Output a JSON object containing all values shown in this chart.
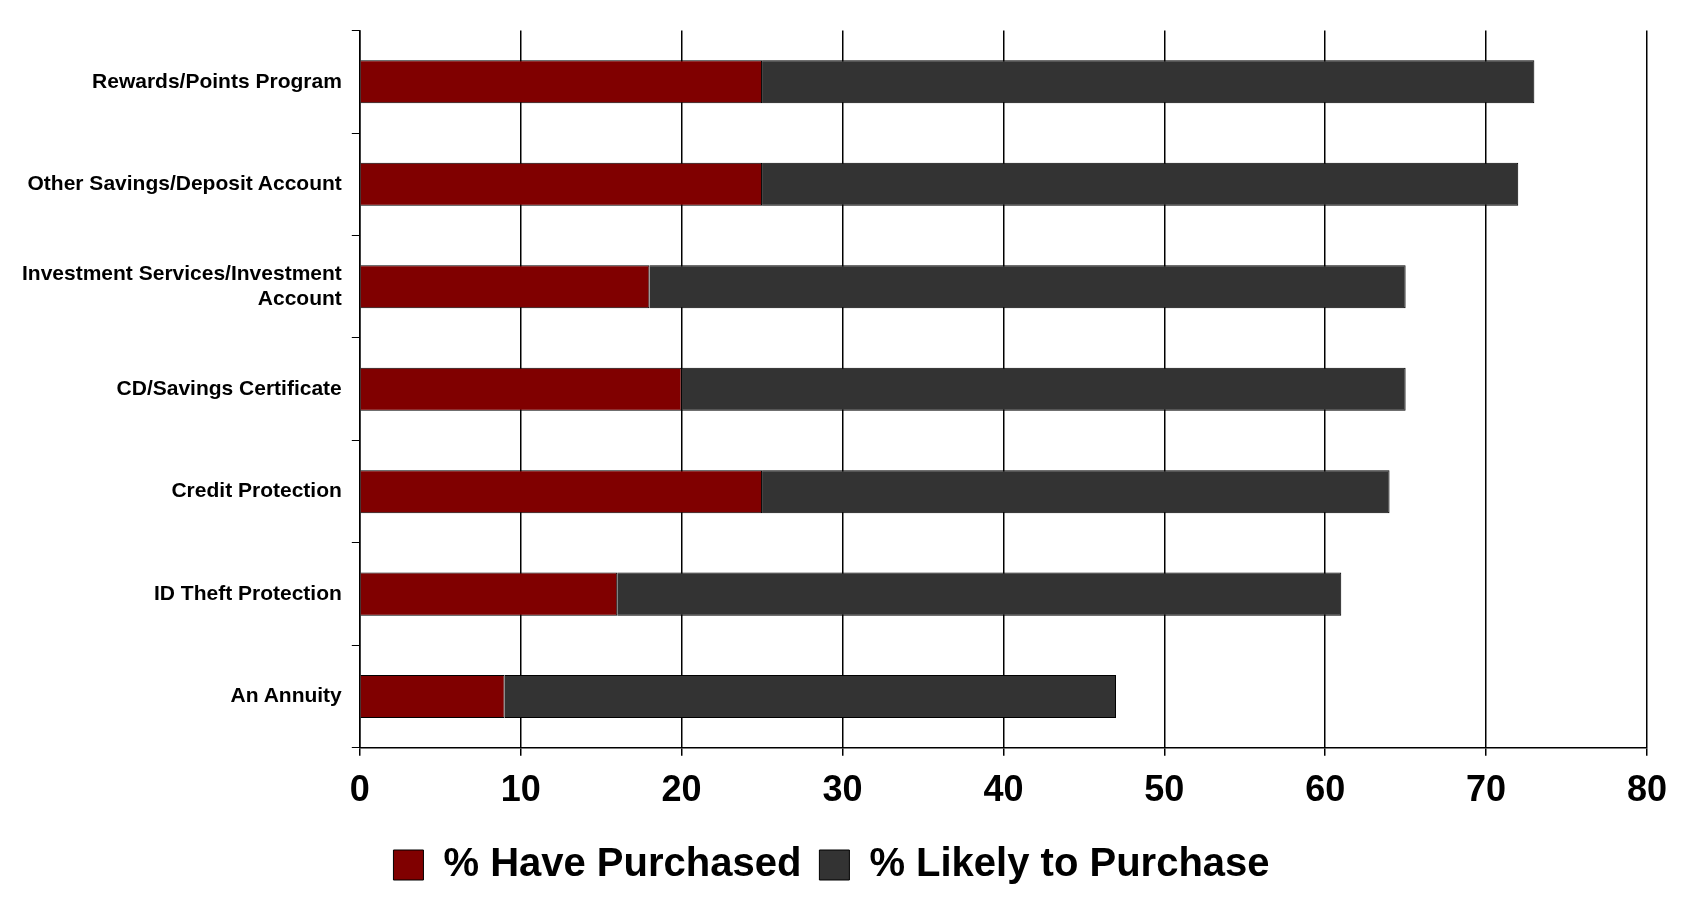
{
  "chart_data": {
    "type": "bar",
    "orientation": "horizontal",
    "stacked": true,
    "categories": [
      "Rewards/Points Program",
      "Other Savings/Deposit Account",
      "Investment Services/Investment Account",
      "CD/Savings Certificate",
      "Credit Protection",
      "ID Theft Protection",
      "An Annuity"
    ],
    "series": [
      {
        "name": "% Have Purchased",
        "color": "#800000",
        "values": [
          25,
          25,
          18,
          20,
          25,
          16,
          9
        ]
      },
      {
        "name": "% Likely to Purchase",
        "color": "#333333",
        "values": [
          48,
          47,
          47,
          45,
          39,
          45,
          38
        ]
      }
    ],
    "xlim": [
      0,
      80
    ],
    "xticks": [
      0,
      10,
      20,
      30,
      40,
      50,
      60,
      70,
      80
    ],
    "grid": "x",
    "legend": "bottom"
  }
}
